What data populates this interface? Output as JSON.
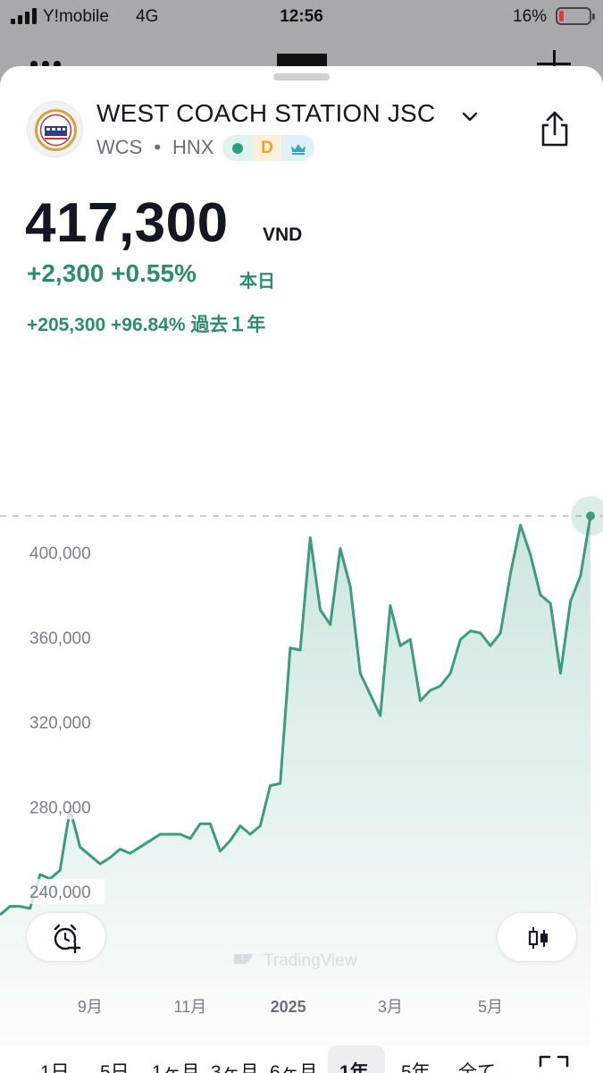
{
  "status_bar": {
    "carrier": "Y!mobile",
    "network": "4G",
    "time": "12:56",
    "battery_percent": "16%"
  },
  "header": {
    "company_name": "WEST COACH STATION JSC",
    "ticker": "WCS",
    "separator": "•",
    "exchange": "HNX",
    "badges": [
      "market-open-dot",
      "D",
      "crown-icon"
    ]
  },
  "quote": {
    "price": "417,300",
    "currency": "VND",
    "change_today": "+2,300 +0.55%",
    "change_today_label": "本日",
    "change_year": "+205,300 +96.84% 過去１年"
  },
  "chart_data": {
    "type": "area",
    "y_ticks": [
      400000,
      360000,
      320000,
      280000,
      240000
    ],
    "y_tick_labels": [
      "400,000",
      "360,000",
      "320,000",
      "280,000",
      "240,000"
    ],
    "x_tick_labels": [
      {
        "label": "9月",
        "t": 9
      },
      {
        "label": "11月",
        "t": 19
      },
      {
        "label": "2025",
        "t": 28.8,
        "bold": true
      },
      {
        "label": "3月",
        "t": 39
      },
      {
        "label": "5月",
        "t": 49
      }
    ],
    "x": [
      0,
      1,
      2,
      3,
      4,
      5,
      6,
      7,
      8,
      9,
      10,
      11,
      12,
      13,
      14,
      15,
      16,
      17,
      18,
      19,
      20,
      21,
      22,
      23,
      24,
      25,
      26,
      27,
      28,
      29,
      30,
      31,
      32,
      33,
      34,
      35,
      36,
      37,
      38,
      39,
      40,
      41,
      42,
      43,
      44,
      45,
      46,
      47,
      48,
      49,
      50,
      51,
      52,
      53,
      54,
      55,
      56,
      57,
      58,
      59
    ],
    "y": [
      229000,
      233000,
      233000,
      232000,
      248000,
      246000,
      250000,
      279000,
      261000,
      257000,
      253000,
      256000,
      260000,
      258000,
      261000,
      264000,
      267000,
      267000,
      267000,
      265000,
      272000,
      272000,
      259000,
      264000,
      271000,
      267000,
      271000,
      290000,
      291000,
      355000,
      354000,
      407000,
      373000,
      366000,
      402000,
      384000,
      343000,
      333000,
      323000,
      375000,
      356000,
      359000,
      330000,
      335000,
      337000,
      343000,
      359000,
      363000,
      362000,
      356000,
      362000,
      390000,
      413000,
      399000,
      380000,
      376000,
      343000,
      377000,
      389000,
      417300
    ],
    "last_value": 417300,
    "ylim": [
      218000,
      420000
    ],
    "line_color": "#3d9c80",
    "fill_color": "#3d9c80",
    "grid": false,
    "watermark": "TradingView"
  },
  "controls": {
    "alert_button": "alarm-plus-icon",
    "chart_type_button": "candlestick-icon"
  },
  "range_tabs": [
    {
      "label": "1日",
      "active": false
    },
    {
      "label": "5日",
      "active": false
    },
    {
      "label": "1ヶ月",
      "active": false
    },
    {
      "label": "3ヶ月",
      "active": false
    },
    {
      "label": "6ヶ月",
      "active": false
    },
    {
      "label": "1年",
      "active": true
    },
    {
      "label": "5年",
      "active": false
    },
    {
      "label": "全て",
      "active": false
    }
  ],
  "fullscreen_button": "fullscreen-icon"
}
